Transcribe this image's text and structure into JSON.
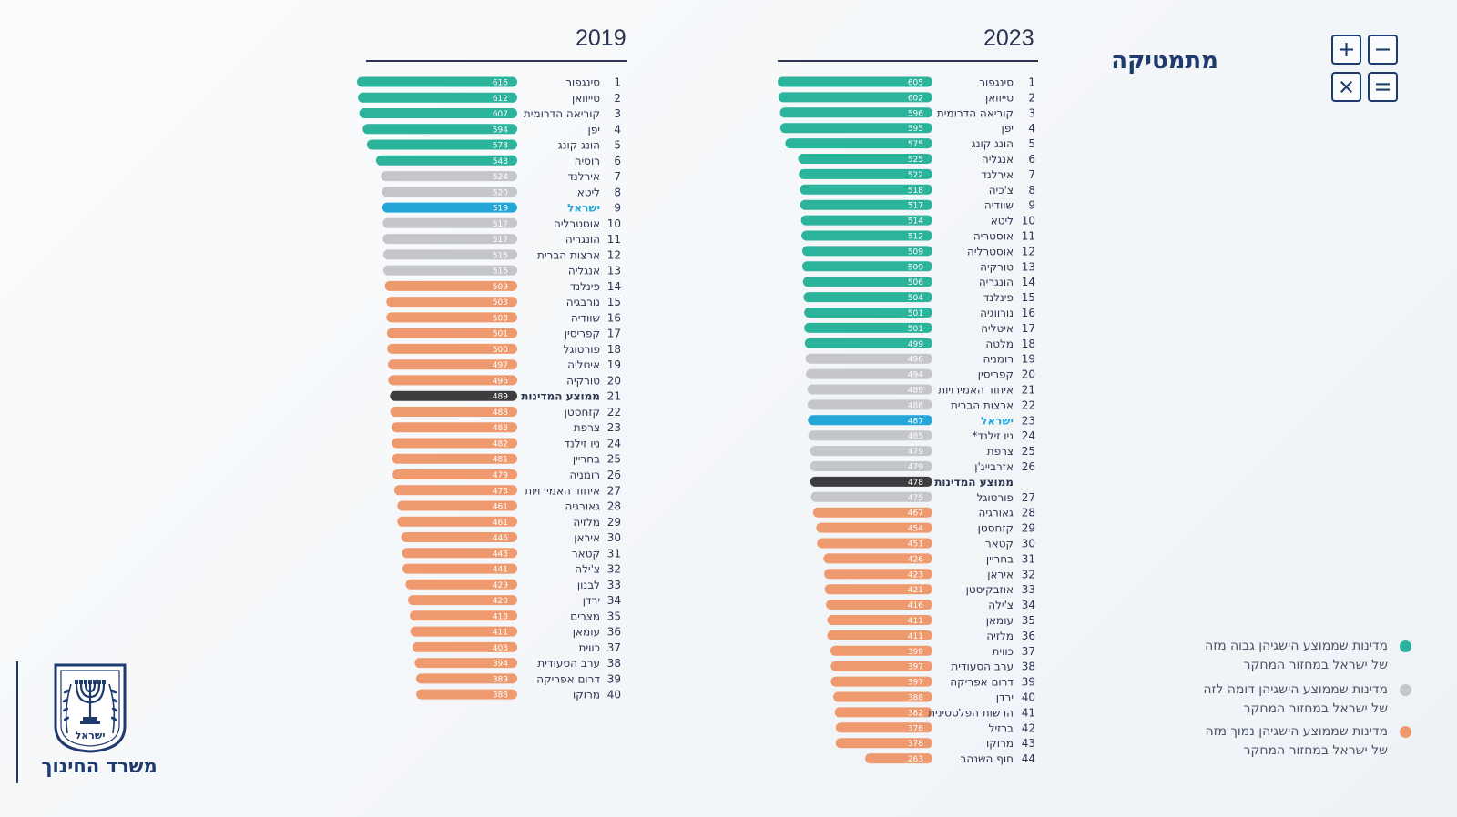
{
  "page": {
    "subject": "מתמטיקה",
    "ministry": "משרד החינוך",
    "emblem_text": "ישראל"
  },
  "math_icons": [
    "plus-icon",
    "minus-icon",
    "times-icon",
    "equals-icon"
  ],
  "colors": {
    "higher": "#2bb39c",
    "similar": "#c4c6c9",
    "lower": "#ef9a6e",
    "israel": "#25a6d9",
    "average": "#3d3d3f",
    "israel_text": "#25a6d9",
    "navy": "#1f3b6e"
  },
  "legend": [
    {
      "status": "higher",
      "line1": "מדינות שממוצע הישגיהן גבוה מזה",
      "line2": "של ישראל במחזור המחקר"
    },
    {
      "status": "similar",
      "line1": "מדינות שממוצע הישגיהן דומה לזה",
      "line2": "של ישראל במחזור המחקר"
    },
    {
      "status": "lower",
      "line1": "מדינות שממוצע הישגיהן נמוך מזה",
      "line2": "של ישראל במחזור המחקר"
    }
  ],
  "chart_data": [
    {
      "type": "bar",
      "title": "2023",
      "orientation": "horizontal",
      "xlim": [
        0,
        605
      ],
      "rows": [
        {
          "rank": "1",
          "country": "סינגפור",
          "value": 605,
          "status": "higher"
        },
        {
          "rank": "2",
          "country": "טייוואן",
          "value": 602,
          "status": "higher"
        },
        {
          "rank": "3",
          "country": "קוריאה הדרומית",
          "value": 596,
          "status": "higher"
        },
        {
          "rank": "4",
          "country": "יפן",
          "value": 595,
          "status": "higher"
        },
        {
          "rank": "5",
          "country": "הונג קונג",
          "value": 575,
          "status": "higher"
        },
        {
          "rank": "6",
          "country": "אנגליה",
          "value": 525,
          "status": "higher"
        },
        {
          "rank": "7",
          "country": "אירלנד",
          "value": 522,
          "status": "higher"
        },
        {
          "rank": "8",
          "country": "צ'כיה",
          "value": 518,
          "status": "higher"
        },
        {
          "rank": "9",
          "country": "שוודיה",
          "value": 517,
          "status": "higher"
        },
        {
          "rank": "10",
          "country": "ליטא",
          "value": 514,
          "status": "higher"
        },
        {
          "rank": "11",
          "country": "אוסטריה",
          "value": 512,
          "status": "higher"
        },
        {
          "rank": "12",
          "country": "אוסטרליה",
          "value": 509,
          "status": "higher"
        },
        {
          "rank": "13",
          "country": "טורקיה",
          "value": 509,
          "status": "higher"
        },
        {
          "rank": "14",
          "country": "הונגריה",
          "value": 506,
          "status": "higher"
        },
        {
          "rank": "15",
          "country": "פינלנד",
          "value": 504,
          "status": "higher"
        },
        {
          "rank": "16",
          "country": "נורווגיה",
          "value": 501,
          "status": "higher"
        },
        {
          "rank": "17",
          "country": "איטליה",
          "value": 501,
          "status": "higher"
        },
        {
          "rank": "18",
          "country": "מלטה",
          "value": 499,
          "status": "higher"
        },
        {
          "rank": "19",
          "country": "רומניה",
          "value": 496,
          "status": "similar"
        },
        {
          "rank": "20",
          "country": "קפריסין",
          "value": 494,
          "status": "similar"
        },
        {
          "rank": "21",
          "country": "איחוד האמירויות",
          "value": 489,
          "status": "similar"
        },
        {
          "rank": "22",
          "country": "ארצות הברית",
          "value": 488,
          "status": "similar"
        },
        {
          "rank": "23",
          "country": "ישראל",
          "value": 487,
          "status": "israel"
        },
        {
          "rank": "24",
          "country": "ניו זילנד*",
          "value": 485,
          "status": "similar"
        },
        {
          "rank": "25",
          "country": "צרפת",
          "value": 479,
          "status": "similar"
        },
        {
          "rank": "26",
          "country": "אזרבייג'ן",
          "value": 479,
          "status": "similar"
        },
        {
          "rank": "",
          "country": "ממוצע המדינות",
          "value": 478,
          "status": "average"
        },
        {
          "rank": "27",
          "country": "פורטוגל",
          "value": 475,
          "status": "similar"
        },
        {
          "rank": "28",
          "country": "גאורגיה",
          "value": 467,
          "status": "lower"
        },
        {
          "rank": "29",
          "country": "קזחסטן",
          "value": 454,
          "status": "lower"
        },
        {
          "rank": "30",
          "country": "קטאר",
          "value": 451,
          "status": "lower"
        },
        {
          "rank": "31",
          "country": "בחריין",
          "value": 426,
          "status": "lower"
        },
        {
          "rank": "32",
          "country": "איראן",
          "value": 423,
          "status": "lower"
        },
        {
          "rank": "33",
          "country": "אוזבקיסטן",
          "value": 421,
          "status": "lower"
        },
        {
          "rank": "34",
          "country": "צ'ילה",
          "value": 416,
          "status": "lower"
        },
        {
          "rank": "35",
          "country": "עומאן",
          "value": 411,
          "status": "lower"
        },
        {
          "rank": "36",
          "country": "מלזיה",
          "value": 411,
          "status": "lower"
        },
        {
          "rank": "37",
          "country": "כווית",
          "value": 399,
          "status": "lower"
        },
        {
          "rank": "38",
          "country": "ערב הסעודית",
          "value": 397,
          "status": "lower"
        },
        {
          "rank": "39",
          "country": "דרום אפריקה",
          "value": 397,
          "status": "lower"
        },
        {
          "rank": "40",
          "country": "ירדן",
          "value": 388,
          "status": "lower"
        },
        {
          "rank": "41",
          "country": "הרשות הפלסטינית",
          "value": 382,
          "status": "lower"
        },
        {
          "rank": "42",
          "country": "ברזיל",
          "value": 378,
          "status": "lower"
        },
        {
          "rank": "43",
          "country": "מרוקו",
          "value": 378,
          "status": "lower"
        },
        {
          "rank": "44",
          "country": "חוף השנהב",
          "value": 263,
          "status": "lower"
        }
      ]
    },
    {
      "type": "bar",
      "title": "2019",
      "orientation": "horizontal",
      "xlim": [
        0,
        616
      ],
      "rows": [
        {
          "rank": "1",
          "country": "סינגפור",
          "value": 616,
          "status": "higher"
        },
        {
          "rank": "2",
          "country": "טייוואן",
          "value": 612,
          "status": "higher"
        },
        {
          "rank": "3",
          "country": "קוריאה הדרומית",
          "value": 607,
          "status": "higher"
        },
        {
          "rank": "4",
          "country": "יפן",
          "value": 594,
          "status": "higher"
        },
        {
          "rank": "5",
          "country": "הונג קונג",
          "value": 578,
          "status": "higher"
        },
        {
          "rank": "6",
          "country": "רוסיה",
          "value": 543,
          "status": "higher"
        },
        {
          "rank": "7",
          "country": "אירלנד",
          "value": 524,
          "status": "similar"
        },
        {
          "rank": "8",
          "country": "ליטא",
          "value": 520,
          "status": "similar"
        },
        {
          "rank": "9",
          "country": "ישראל",
          "value": 519,
          "status": "israel"
        },
        {
          "rank": "10",
          "country": "אוסטרליה",
          "value": 517,
          "status": "similar"
        },
        {
          "rank": "11",
          "country": "הונגריה",
          "value": 517,
          "status": "similar"
        },
        {
          "rank": "12",
          "country": "ארצות הברית",
          "value": 515,
          "status": "similar"
        },
        {
          "rank": "13",
          "country": "אנגליה",
          "value": 515,
          "status": "similar"
        },
        {
          "rank": "14",
          "country": "פינלנד",
          "value": 509,
          "status": "lower"
        },
        {
          "rank": "15",
          "country": "נורבגיה",
          "value": 503,
          "status": "lower"
        },
        {
          "rank": "16",
          "country": "שוודיה",
          "value": 503,
          "status": "lower"
        },
        {
          "rank": "17",
          "country": "קפריסין",
          "value": 501,
          "status": "lower"
        },
        {
          "rank": "18",
          "country": "פורטוגל",
          "value": 500,
          "status": "lower"
        },
        {
          "rank": "19",
          "country": "איטליה",
          "value": 497,
          "status": "lower"
        },
        {
          "rank": "20",
          "country": "טורקיה",
          "value": 496,
          "status": "lower"
        },
        {
          "rank": "21",
          "country": "ממוצע המדינות",
          "value": 489,
          "status": "average"
        },
        {
          "rank": "22",
          "country": "קזחסטן",
          "value": 488,
          "status": "lower"
        },
        {
          "rank": "23",
          "country": "צרפת",
          "value": 483,
          "status": "lower"
        },
        {
          "rank": "24",
          "country": "ניו זילנד",
          "value": 482,
          "status": "lower"
        },
        {
          "rank": "25",
          "country": "בחריין",
          "value": 481,
          "status": "lower"
        },
        {
          "rank": "26",
          "country": "רומניה",
          "value": 479,
          "status": "lower"
        },
        {
          "rank": "27",
          "country": "איחוד האמירויות",
          "value": 473,
          "status": "lower"
        },
        {
          "rank": "28",
          "country": "גאורגיה",
          "value": 461,
          "status": "lower"
        },
        {
          "rank": "29",
          "country": "מלזיה",
          "value": 461,
          "status": "lower"
        },
        {
          "rank": "30",
          "country": "איראן",
          "value": 446,
          "status": "lower"
        },
        {
          "rank": "31",
          "country": "קטאר",
          "value": 443,
          "status": "lower"
        },
        {
          "rank": "32",
          "country": "צ'ילה",
          "value": 441,
          "status": "lower"
        },
        {
          "rank": "33",
          "country": "לבנון",
          "value": 429,
          "status": "lower"
        },
        {
          "rank": "34",
          "country": "ירדן",
          "value": 420,
          "status": "lower"
        },
        {
          "rank": "35",
          "country": "מצרים",
          "value": 413,
          "status": "lower"
        },
        {
          "rank": "36",
          "country": "עומאן",
          "value": 411,
          "status": "lower"
        },
        {
          "rank": "37",
          "country": "כווית",
          "value": 403,
          "status": "lower"
        },
        {
          "rank": "38",
          "country": "ערב הסעודית",
          "value": 394,
          "status": "lower"
        },
        {
          "rank": "39",
          "country": "דרום אפריקה",
          "value": 389,
          "status": "lower"
        },
        {
          "rank": "40",
          "country": "מרוקו",
          "value": 388,
          "status": "lower"
        }
      ]
    }
  ]
}
